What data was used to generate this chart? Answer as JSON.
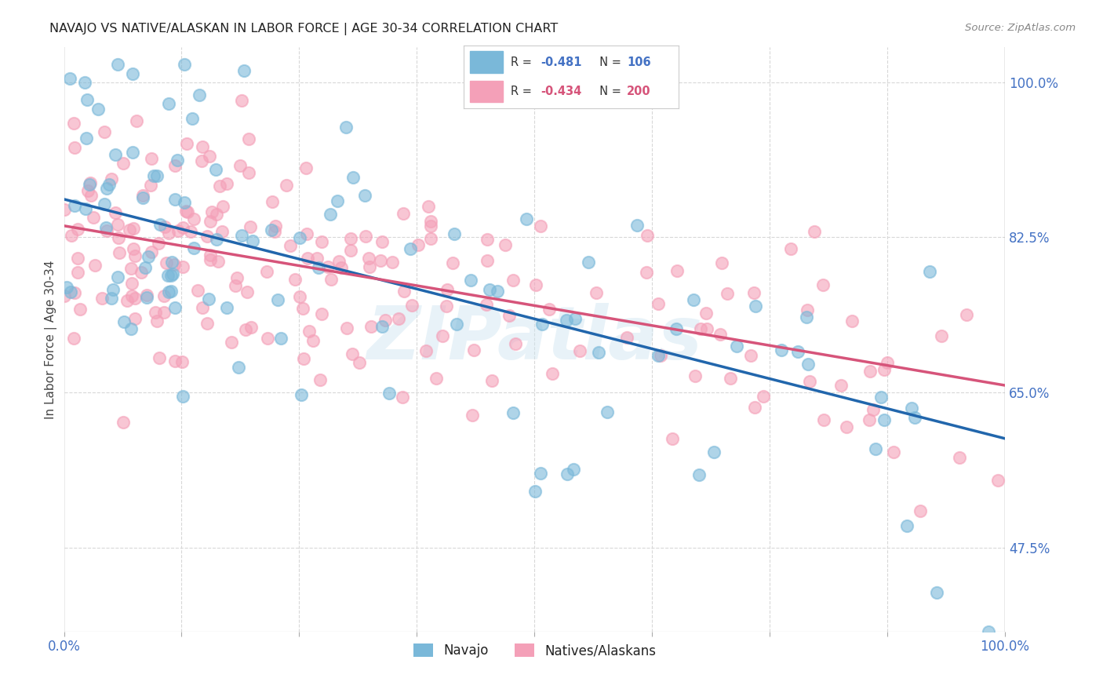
{
  "title": "NAVAJO VS NATIVE/ALASKAN IN LABOR FORCE | AGE 30-34 CORRELATION CHART",
  "source_text": "Source: ZipAtlas.com",
  "ylabel": "In Labor Force | Age 30-34",
  "navajo_color": "#7ab8d9",
  "native_color": "#f4a0b8",
  "navajo_line_color": "#2166ac",
  "native_line_color": "#d6547a",
  "navajo_r": "-0.481",
  "navajo_n": "106",
  "native_r": "-0.434",
  "native_n": "200",
  "navajo_slope": -0.27,
  "navajo_intercept": 0.868,
  "native_slope": -0.18,
  "native_intercept": 0.838,
  "watermark": "ZIPatlas",
  "background_color": "#ffffff",
  "grid_color": "#d8d8d8",
  "right_ytick_labels": [
    "100.0%",
    "82.5%",
    "65.0%",
    "47.5%"
  ],
  "right_ytick_positions": [
    1.0,
    0.825,
    0.65,
    0.475
  ],
  "xlim": [
    0.0,
    1.0
  ],
  "ylim": [
    0.38,
    1.04
  ],
  "axis_label_color": "#4472c4",
  "title_color": "#222222",
  "source_color": "#888888",
  "ylabel_color": "#444444"
}
